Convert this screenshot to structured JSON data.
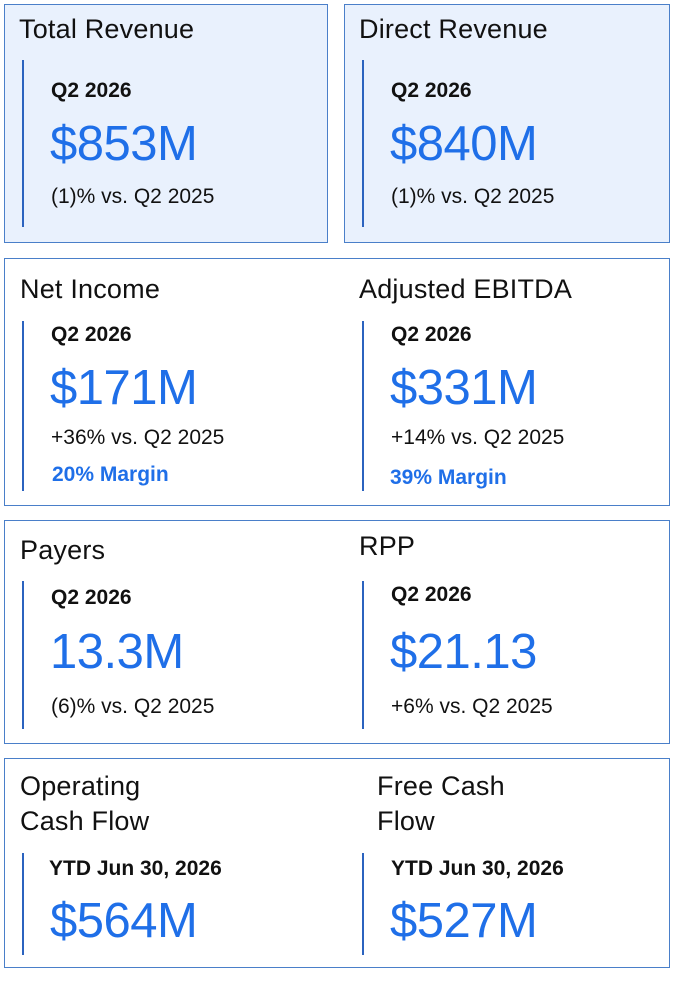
{
  "cards": [
    {
      "panels": [
        {
          "heading": "Total Revenue",
          "period": "Q2 2026",
          "value": "$853M",
          "change": "(1)% vs. Q2 2025"
        }
      ]
    },
    {
      "panels": [
        {
          "heading": "Direct Revenue",
          "period": "Q2 2026",
          "value": "$840M",
          "change": "(1)% vs. Q2 2025"
        }
      ]
    },
    {
      "panels": [
        {
          "heading": "Net Income",
          "period": "Q2 2026",
          "value": "$171M",
          "change": "+36% vs. Q2 2025",
          "margin": "20% Margin"
        },
        {
          "heading": "Adjusted EBITDA",
          "period": "Q2 2026",
          "value": "$331M",
          "change": "+14% vs. Q2 2025",
          "margin": "39% Margin"
        }
      ]
    },
    {
      "panels": [
        {
          "heading": "Payers",
          "period": "Q2 2026",
          "value": "13.3M",
          "change": "(6)% vs. Q2 2025"
        },
        {
          "heading": "RPP",
          "period": "Q2 2026",
          "value": "$21.13",
          "change": "+6% vs. Q2 2025"
        }
      ]
    },
    {
      "panels": [
        {
          "heading_line1": "Operating",
          "heading_line2": "Cash Flow",
          "period": "YTD Jun 30, 2026",
          "value": "$564M"
        },
        {
          "heading_line1": "Free Cash",
          "heading_line2": "Flow",
          "period": "YTD Jun 30, 2026",
          "value": "$527M"
        }
      ]
    }
  ],
  "colors": {
    "accent": "#1f6fe8",
    "border": "#4a7fc9",
    "shaded_background": "#e9f1fd",
    "text": "#111111"
  }
}
